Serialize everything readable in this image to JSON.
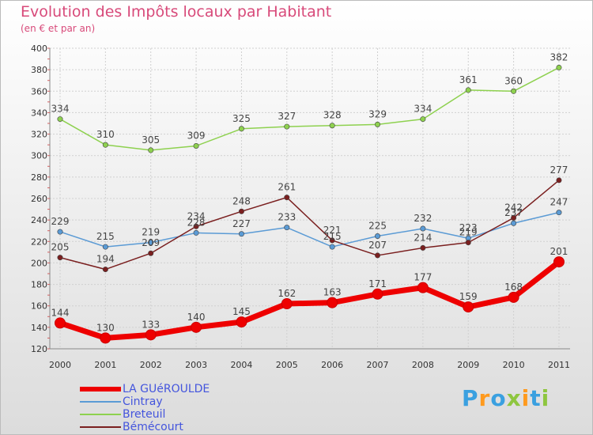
{
  "title": "Evolution des Impôts locaux par Habitant",
  "subtitle": "(en € et par an)",
  "logo": [
    "P",
    "r",
    "o",
    "x",
    "i",
    "t",
    "i"
  ],
  "colors": {
    "title": "#d84a7a",
    "legend_text": "#4455dd",
    "logo": [
      "#3aa0e0",
      "#ff9a1e",
      "#3aa0e0",
      "#8ec63f",
      "#ff9a1e",
      "#3aa0e0",
      "#8ec63f"
    ]
  },
  "chart_data": {
    "type": "line",
    "title": "Evolution des Impôts locaux par Habitant",
    "subtitle": "(en € et par an)",
    "categories": [
      "2000",
      "2001",
      "2002",
      "2003",
      "2004",
      "2005",
      "2006",
      "2007",
      "2008",
      "2009",
      "2010",
      "2011"
    ],
    "ylim": [
      120,
      400
    ],
    "yticks": [
      120,
      140,
      160,
      180,
      200,
      220,
      240,
      260,
      280,
      300,
      320,
      340,
      360,
      380,
      400
    ],
    "grid": true,
    "legend_position": "bottom-left",
    "series": [
      {
        "name": "LA GUéROULDE",
        "color": "#ee0000",
        "values": [
          144,
          130,
          133,
          140,
          145,
          162,
          163,
          171,
          177,
          159,
          168,
          201
        ]
      },
      {
        "name": "Cintray",
        "color": "#5b9bd5",
        "values": [
          229,
          215,
          219,
          228,
          227,
          233,
          215,
          225,
          232,
          223,
          237,
          247
        ]
      },
      {
        "name": "Breteuil",
        "color": "#8ed14f",
        "values": [
          334,
          310,
          305,
          309,
          325,
          327,
          328,
          329,
          334,
          361,
          360,
          382
        ]
      },
      {
        "name": "Bémécourt",
        "color": "#7a1f1f",
        "values": [
          205,
          194,
          209,
          234,
          248,
          261,
          221,
          207,
          214,
          219,
          242,
          277
        ]
      }
    ],
    "data_labels": [
      [
        "144",
        "130",
        "133",
        "140",
        "145",
        "162",
        "163",
        "171",
        "177",
        "159",
        "168",
        "201"
      ],
      [
        "229",
        "215",
        "219",
        "228",
        "227",
        "233",
        "215",
        "225",
        "232",
        "223",
        "237",
        "247"
      ],
      [
        "334",
        "310",
        "305",
        "309",
        "325",
        "327",
        "328",
        "329",
        "334",
        "361",
        "360",
        "382"
      ],
      [
        "205",
        "194",
        "209",
        "234",
        "248",
        "261",
        "221",
        "207",
        "214",
        "219",
        "242",
        "277"
      ]
    ]
  }
}
